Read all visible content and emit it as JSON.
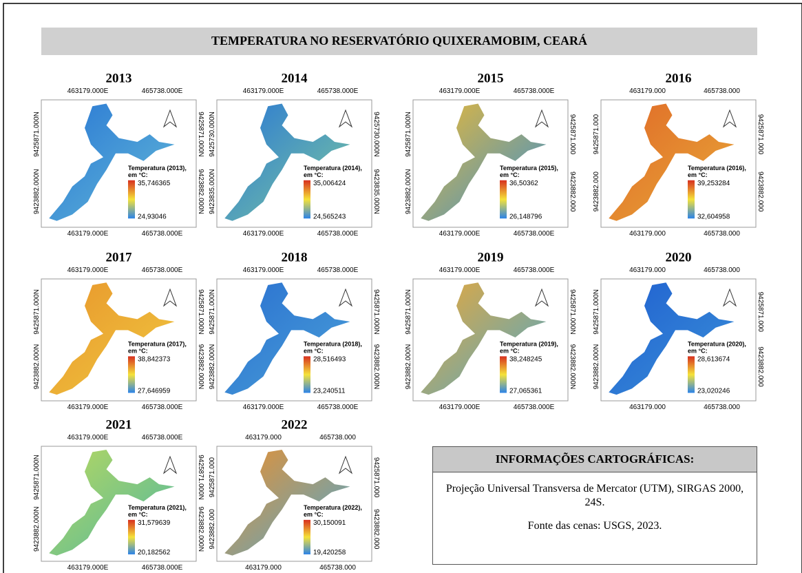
{
  "title": "TEMPERATURA NO RESERVATÓRIO QUIXERAMOBIM, CEARÁ",
  "panels": [
    {
      "year": "2013",
      "top_labels": [
        "463179.000E",
        "465738.000E"
      ],
      "bottom_labels": [
        "463179.000E",
        "465738.000E"
      ],
      "left_labels": [
        "9425871.000N",
        "9423882.000N"
      ],
      "right_labels": [
        "9425871.000N",
        "9423882.000N"
      ],
      "legend_title": [
        "Temperatura (2013),",
        "em °C:"
      ],
      "max": "35,746365",
      "min": "24,93046",
      "colors": [
        "#2a78d4",
        "#62b8d8"
      ]
    },
    {
      "year": "2014",
      "top_labels": [
        "463179.000E",
        "465738.000E"
      ],
      "bottom_labels": [
        "463179.000E",
        "465738.000E"
      ],
      "left_labels": [
        "9425730.000N",
        "9423835.000N"
      ],
      "right_labels": [
        "9425730.000N",
        "9423835.000N"
      ],
      "legend_title": [
        "Temperatura (2014),",
        "em °C:"
      ],
      "max": "35,006424",
      "min": "24,565243",
      "colors": [
        "#2a78d4",
        "#7cc8a0"
      ]
    },
    {
      "year": "2015",
      "top_labels": [
        "463179.000E",
        "465738.000E"
      ],
      "bottom_labels": [
        "463179.000E",
        "465738.000E"
      ],
      "left_labels": [
        "9425871.000N",
        "9423882.000N"
      ],
      "right_labels": [
        "9425871.000",
        "9423882.000"
      ],
      "legend_title": [
        "Temperatura (2015),",
        "em °C:"
      ],
      "max": "36,50362",
      "min": "26,148796",
      "colors": [
        "#e8b838",
        "#3a90d0"
      ]
    },
    {
      "year": "2016",
      "top_labels": [
        "463179.000",
        "465738.000"
      ],
      "bottom_labels": [
        "463179.000",
        "465738.000"
      ],
      "left_labels": [
        "9425871.000",
        "9423882.000"
      ],
      "right_labels": [
        "9425871.000",
        "9423882.000"
      ],
      "legend_title": [
        "Temperatura (2016),",
        "em °C:"
      ],
      "max": "39,253284",
      "min": "32,604958",
      "colors": [
        "#e06a28",
        "#e8a838"
      ]
    },
    {
      "year": "2017",
      "top_labels": [
        "463179.000E",
        "465738.000E"
      ],
      "bottom_labels": [
        "463179.000E",
        "465738.000E"
      ],
      "left_labels": [
        "9425871.000N",
        "9423882.000N"
      ],
      "right_labels": [
        "9425871.000N",
        "9423882.000N"
      ],
      "legend_title": [
        "Temperatura (2017),",
        "em °C:"
      ],
      "max": "38,842373",
      "min": "27,646959",
      "colors": [
        "#e8962c",
        "#f0c840"
      ]
    },
    {
      "year": "2018",
      "top_labels": [
        "463179.000E",
        "465738.000E"
      ],
      "bottom_labels": [
        "463179.000E",
        "465738.000E"
      ],
      "left_labels": [
        "9425871.000N",
        "9423882.000N"
      ],
      "right_labels": [
        "9425871.000N",
        "9423882.000N"
      ],
      "legend_title": [
        "Temperatura (2018),",
        "em °C:"
      ],
      "max": "28,516493",
      "min": "23,240511",
      "colors": [
        "#2a70d0",
        "#4aa0d8"
      ]
    },
    {
      "year": "2019",
      "top_labels": [
        "463179.000E",
        "465738.000E"
      ],
      "bottom_labels": [
        "463179.000E",
        "465738.000E"
      ],
      "left_labels": [
        "9425871.000N",
        "9423882.000N"
      ],
      "right_labels": [
        "9425871.000N",
        "9423882.000N"
      ],
      "legend_title": [
        "Temperatura (2019),",
        "em °C:"
      ],
      "max": "38,248245",
      "min": "27,065361",
      "colors": [
        "#e8a83a",
        "#50a8c8"
      ]
    },
    {
      "year": "2020",
      "top_labels": [
        "463179.000",
        "465738.000"
      ],
      "bottom_labels": [
        "463179.000",
        "465738.000"
      ],
      "left_labels": [
        "9425871.000N",
        "9423882.000N"
      ],
      "right_labels": [
        "9425871.000",
        "9423882.000"
      ],
      "legend_title": [
        "Temperatura (2020),",
        "em °C:"
      ],
      "max": "28,613674",
      "min": "23,020246",
      "colors": [
        "#2060d0",
        "#3a90d8"
      ]
    },
    {
      "year": "2021",
      "top_labels": [
        "463179.000E",
        "465738.000E"
      ],
      "bottom_labels": [
        "463179.000E",
        "465738.000E"
      ],
      "left_labels": [
        "9425871.000N",
        "9423882.000N"
      ],
      "right_labels": [
        "9425871.000N",
        "9423882.000N"
      ],
      "legend_title": [
        "Temperatura (2021),",
        "em °C:"
      ],
      "max": "31,579639",
      "min": "20,182562",
      "colors": [
        "#b8d860",
        "#50b8a0"
      ]
    },
    {
      "year": "2022",
      "top_labels": [
        "463179.000",
        "465738.000"
      ],
      "bottom_labels": [
        "463179.000",
        "465738.000"
      ],
      "left_labels": [
        "9425871.000",
        "9423882.000"
      ],
      "right_labels": [
        "9425871.000",
        "9423882.000"
      ],
      "legend_title": [
        "Temperatura (2022),",
        "em °C:"
      ],
      "max": "30,150091",
      "min": "19,420258",
      "colors": [
        "#e89030",
        "#50a8d0"
      ]
    }
  ],
  "info": {
    "title": "INFORMAÇÕES CARTOGRÁFICAS:",
    "lines": [
      "Projeção Universal Transversa de Mercator (UTM), SIRGAS 2000, 24S.",
      "Fonte das cenas: USGS, 2023."
    ]
  }
}
